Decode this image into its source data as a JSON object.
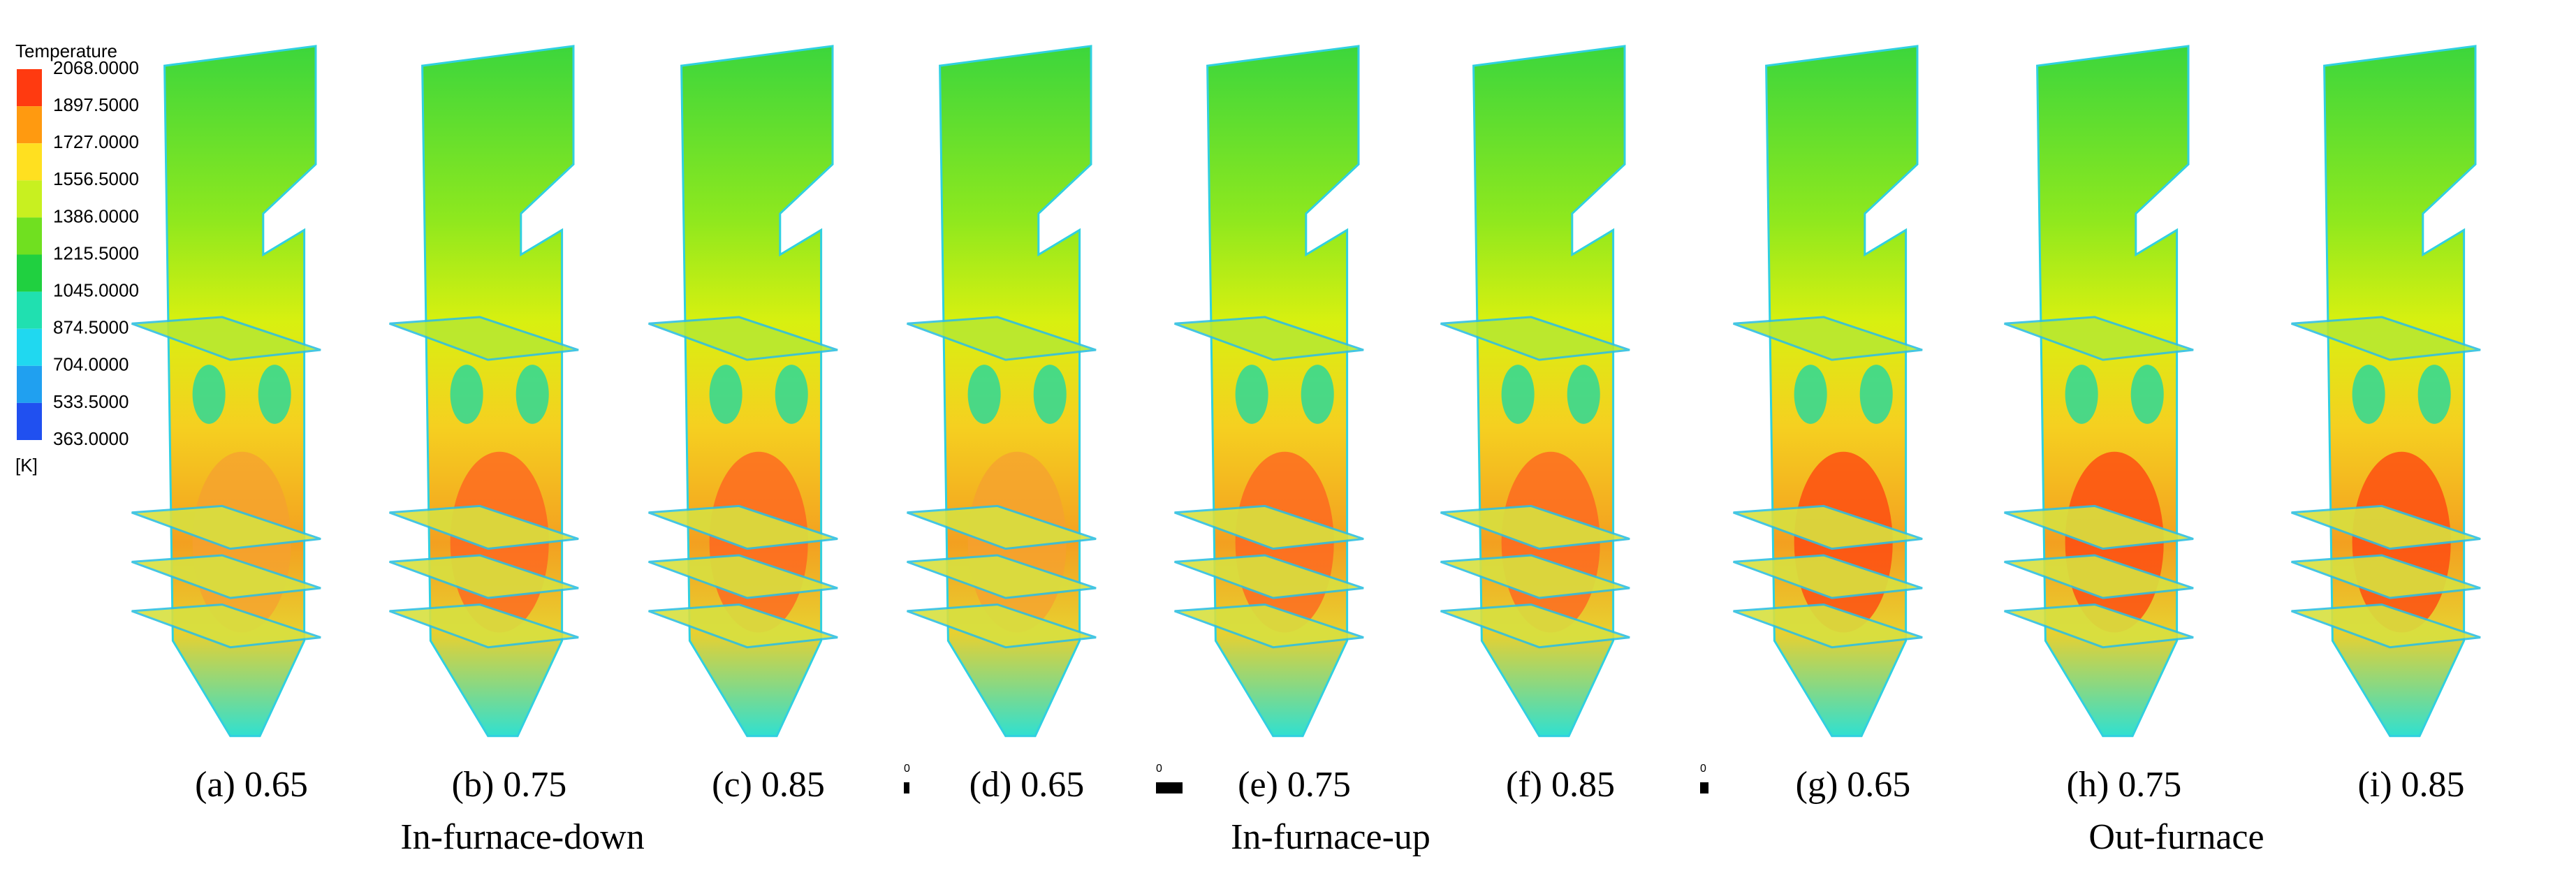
{
  "legend": {
    "title": "Temperature",
    "levels": [
      "2068.0000",
      "1897.5000",
      "1727.0000",
      "1556.5000",
      "1386.0000",
      "1215.5000",
      "1045.0000",
      "874.5000",
      "704.0000",
      "533.5000",
      "363.0000"
    ],
    "unit": "[K]"
  },
  "panels": [
    {
      "label": "(a) 0.65"
    },
    {
      "label": "(b) 0.75"
    },
    {
      "label": "(c) 0.85"
    },
    {
      "label": "(d) 0.65"
    },
    {
      "label": "(e) 0.75"
    },
    {
      "label": "(f) 0.85"
    },
    {
      "label": "(g) 0.65"
    },
    {
      "label": "(h) 0.75"
    },
    {
      "label": "(i) 0.85"
    }
  ],
  "groups": [
    "In-furnace-down",
    "In-furnace-up",
    "Out-furnace"
  ],
  "scale_markers": [
    "0",
    "0",
    "0"
  ]
}
